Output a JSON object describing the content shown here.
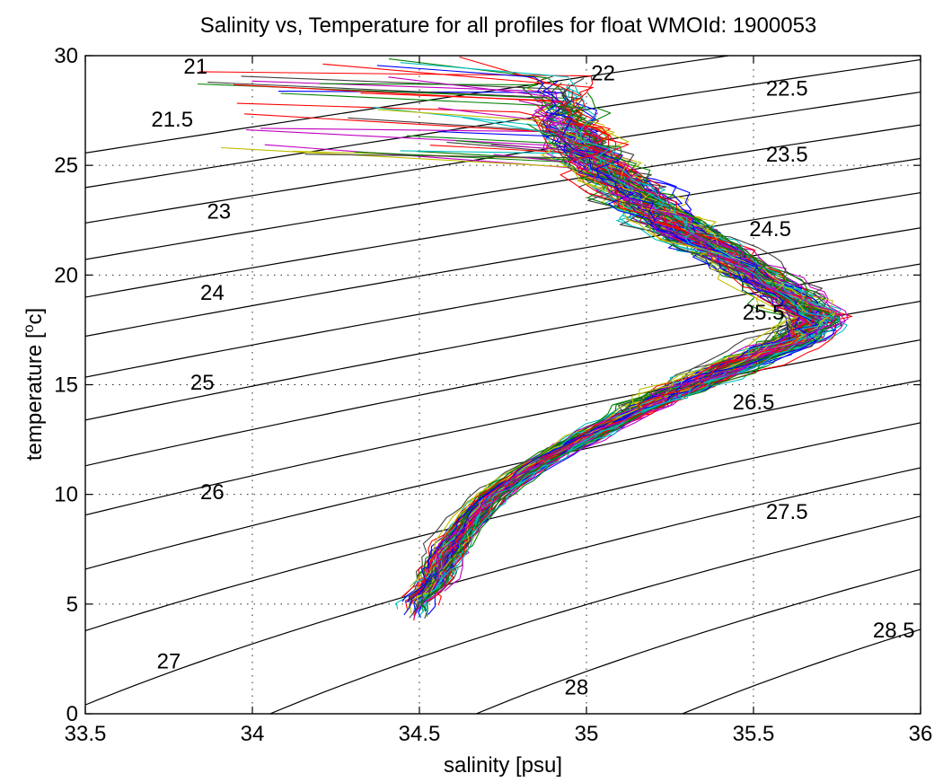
{
  "chart_data": {
    "type": "line",
    "title": "Salinity vs, Temperature for all profiles for float WMOId: 1900053",
    "xlabel": "salinity [psu]",
    "ylabel_main": "temperature [",
    "ylabel_sup": "o",
    "ylabel_tail": "c]",
    "xlim": [
      33.5,
      36
    ],
    "ylim": [
      0,
      30
    ],
    "xticks": [
      "33.5",
      "34",
      "34.5",
      "35",
      "35.5",
      "36"
    ],
    "yticks": [
      "0",
      "5",
      "10",
      "15",
      "20",
      "25",
      "30"
    ],
    "grid": true,
    "series_colors": [
      "#0000ff",
      "#008000",
      "#ff0000",
      "#00bfbf",
      "#bf00bf",
      "#bfbf00",
      "#404040"
    ],
    "density_contours": [
      {
        "sigma": 21,
        "label": "21",
        "label_at": [
          33.83,
          29.5
        ]
      },
      {
        "sigma": 21.5,
        "label": "21.5",
        "label_at": [
          33.76,
          27.1
        ]
      },
      {
        "sigma": 22,
        "label": "22",
        "label_at": [
          35.05,
          29.2
        ]
      },
      {
        "sigma": 22.5,
        "label": "22.5",
        "label_at": [
          35.6,
          28.5
        ]
      },
      {
        "sigma": 23,
        "label": "23",
        "label_at": [
          33.9,
          22.9
        ]
      },
      {
        "sigma": 23.5,
        "label": "23.5",
        "label_at": [
          35.6,
          25.5
        ]
      },
      {
        "sigma": 24,
        "label": "24",
        "label_at": [
          33.88,
          19.2
        ]
      },
      {
        "sigma": 24.5,
        "label": "24.5",
        "label_at": [
          35.55,
          22.1
        ]
      },
      {
        "sigma": 25,
        "label": "25",
        "label_at": [
          33.85,
          15.1
        ]
      },
      {
        "sigma": 25.5,
        "label": "25.5",
        "label_at": [
          35.53,
          18.3
        ]
      },
      {
        "sigma": 26,
        "label": "26",
        "label_at": [
          33.88,
          10.1
        ]
      },
      {
        "sigma": 26.5,
        "label": "26.5",
        "label_at": [
          35.5,
          14.2
        ]
      },
      {
        "sigma": 27,
        "label": "27",
        "label_at": [
          33.75,
          2.4
        ]
      },
      {
        "sigma": 27.5,
        "label": "27.5",
        "label_at": [
          35.6,
          9.2
        ]
      },
      {
        "sigma": 28,
        "label": "28",
        "label_at": [
          34.97,
          1.2
        ]
      },
      {
        "sigma": 28.5,
        "label": "28.5",
        "label_at": [
          35.92,
          3.8
        ]
      }
    ],
    "profile_count": 110,
    "mean_profile": [
      [
        34.5,
        5.2
      ],
      [
        34.55,
        6.0
      ],
      [
        34.58,
        7.0
      ],
      [
        34.62,
        8.0
      ],
      [
        34.67,
        9.0
      ],
      [
        34.73,
        10.0
      ],
      [
        34.82,
        11.0
      ],
      [
        34.93,
        12.0
      ],
      [
        35.05,
        13.0
      ],
      [
        35.18,
        14.0
      ],
      [
        35.32,
        15.0
      ],
      [
        35.48,
        16.0
      ],
      [
        35.63,
        17.0
      ],
      [
        35.7,
        18.0
      ],
      [
        35.62,
        19.0
      ],
      [
        35.52,
        20.0
      ],
      [
        35.42,
        21.0
      ],
      [
        35.3,
        22.0
      ],
      [
        35.2,
        23.0
      ],
      [
        35.12,
        24.0
      ],
      [
        35.05,
        25.0
      ],
      [
        35.0,
        26.0
      ],
      [
        34.95,
        27.0
      ],
      [
        34.92,
        28.0
      ]
    ]
  }
}
